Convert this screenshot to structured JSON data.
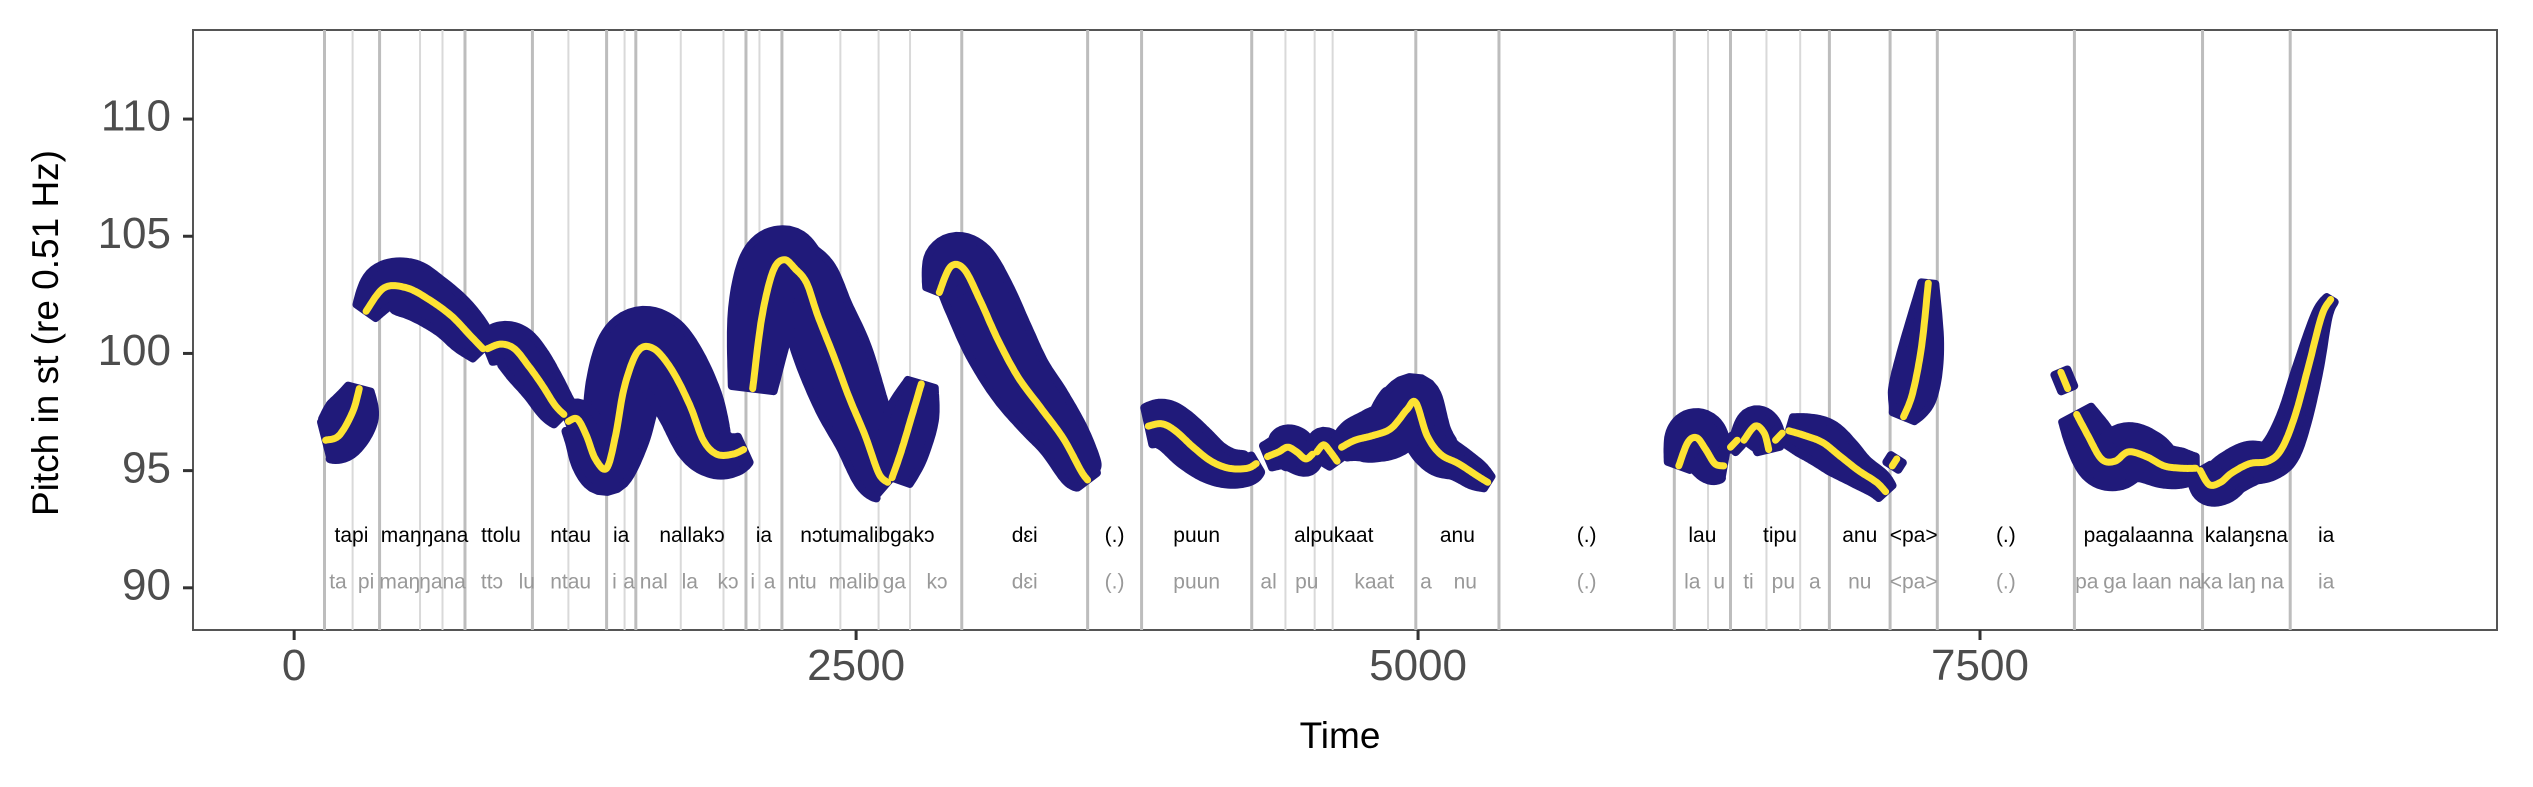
{
  "chart_data": {
    "type": "line",
    "xlabel": "Time",
    "ylabel": "Pitch in st (re 0.51 Hz)",
    "xlim": [
      -450,
      9800
    ],
    "ylim": [
      88.2,
      113.8
    ],
    "xticks": [
      0,
      2500,
      5000,
      7500
    ],
    "yticks": [
      90,
      95,
      100,
      105,
      110
    ],
    "colors": {
      "band": "#201a7a",
      "line": "#fde333",
      "boundary_major": "#bdbdbd",
      "boundary_minor": "#d9d9d9",
      "syllable_text": "#999999",
      "panel_border": "#555555"
    },
    "word_label_y": 92.2,
    "syllable_label_y": 90.2,
    "boundaries": {
      "major": [
        135,
        380,
        760,
        1060,
        1390,
        1520,
        2010,
        2170,
        2970,
        3530,
        3770,
        4260,
        4990,
        5360,
        6140,
        6390,
        6830,
        7100,
        7310,
        7920,
        8490,
        8880
      ],
      "minor": [
        260,
        560,
        660,
        1220,
        1470,
        1720,
        1910,
        2070,
        2430,
        2600,
        2740,
        4410,
        4540,
        4620,
        6290,
        6550,
        6700
      ]
    },
    "words": [
      {
        "label": "tapi",
        "x": 255
      },
      {
        "label": "maŋŋana",
        "x": 580
      },
      {
        "label": "ttolu",
        "x": 920
      },
      {
        "label": "ntau",
        "x": 1230
      },
      {
        "label": "ia",
        "x": 1455
      },
      {
        "label": "nallakɔ",
        "x": 1770
      },
      {
        "label": "ia",
        "x": 2090
      },
      {
        "label": "nɔtumalibgakɔ",
        "x": 2550
      },
      {
        "label": "dɛi",
        "x": 3250
      },
      {
        "label": "(.)",
        "x": 3650
      },
      {
        "label": "puun",
        "x": 4015
      },
      {
        "label": "alpukaat",
        "x": 4625
      },
      {
        "label": "anu",
        "x": 5175
      },
      {
        "label": "(.)",
        "x": 5750
      },
      {
        "label": "lau",
        "x": 6265
      },
      {
        "label": "tipu",
        "x": 6610
      },
      {
        "label": "anu",
        "x": 6965
      },
      {
        "label": "<pa>",
        "x": 7205
      },
      {
        "label": "(.)",
        "x": 7615
      },
      {
        "label": "pagalaanna",
        "x": 8205
      },
      {
        "label": "kalaŋɛna",
        "x": 8685
      },
      {
        "label": "ia",
        "x": 9040
      }
    ],
    "syllables": [
      {
        "label": "ta",
        "x": 195
      },
      {
        "label": "pi",
        "x": 320
      },
      {
        "label": "maŋ",
        "x": 470
      },
      {
        "label": "ŋana",
        "x": 660
      },
      {
        "label": "ttɔ",
        "x": 880
      },
      {
        "label": "lu",
        "x": 1035
      },
      {
        "label": "ntau",
        "x": 1230
      },
      {
        "label": "i",
        "x": 1425
      },
      {
        "label": "a",
        "x": 1490
      },
      {
        "label": "nal",
        "x": 1600
      },
      {
        "label": "la",
        "x": 1760
      },
      {
        "label": "kɔ",
        "x": 1930
      },
      {
        "label": "i",
        "x": 2040
      },
      {
        "label": "a",
        "x": 2115
      },
      {
        "label": "ntu",
        "x": 2260
      },
      {
        "label": "malib",
        "x": 2490
      },
      {
        "label": "ga",
        "x": 2670
      },
      {
        "label": "kɔ",
        "x": 2860
      },
      {
        "label": "dɛi",
        "x": 3250
      },
      {
        "label": "(.)",
        "x": 3650
      },
      {
        "label": "puun",
        "x": 4015
      },
      {
        "label": "al",
        "x": 4335
      },
      {
        "label": "pu",
        "x": 4505
      },
      {
        "label": "kaat",
        "x": 4805
      },
      {
        "label": "a",
        "x": 5035
      },
      {
        "label": "nu",
        "x": 5210
      },
      {
        "label": "(.)",
        "x": 5750
      },
      {
        "label": "la",
        "x": 6220
      },
      {
        "label": "u",
        "x": 6340
      },
      {
        "label": "ti",
        "x": 6470
      },
      {
        "label": "pu",
        "x": 6625
      },
      {
        "label": "a",
        "x": 6765
      },
      {
        "label": "nu",
        "x": 6965
      },
      {
        "label": "<pa>",
        "x": 7205
      },
      {
        "label": "(.)",
        "x": 7615
      },
      {
        "label": "pa",
        "x": 7975
      },
      {
        "label": "ga",
        "x": 8100
      },
      {
        "label": "laan",
        "x": 8265
      },
      {
        "label": "na",
        "x": 8435
      },
      {
        "label": "ka",
        "x": 8530
      },
      {
        "label": "laŋ",
        "x": 8665
      },
      {
        "label": "na",
        "x": 8800
      },
      {
        "label": "ia",
        "x": 9040
      }
    ],
    "series": [
      {
        "points": [
          [
            140,
            96.3
          ],
          [
            200,
            96.5
          ],
          [
            260,
            97.5
          ],
          [
            290,
            98.5
          ]
        ],
        "widths": [
          0.8,
          1.0,
          1.0,
          0.5
        ]
      },
      {
        "points": [
          [
            320,
            101.8
          ],
          [
            400,
            102.8
          ],
          [
            500,
            102.8
          ],
          [
            600,
            102.3
          ],
          [
            700,
            101.6
          ],
          [
            780,
            100.8
          ],
          [
            840,
            100.2
          ]
        ],
        "widths": [
          0.5,
          0.9,
          1.1,
          1.0,
          0.9,
          0.8,
          0.6
        ]
      },
      {
        "points": [
          [
            860,
            100.2
          ],
          [
            920,
            100.4
          ],
          [
            980,
            100.2
          ],
          [
            1040,
            99.5
          ],
          [
            1100,
            98.7
          ],
          [
            1160,
            97.8
          ],
          [
            1200,
            97.4
          ]
        ],
        "widths": [
          0.6,
          0.8,
          0.9,
          0.9,
          0.8,
          0.7,
          0.6
        ]
      },
      {
        "points": [
          [
            1220,
            97.1
          ],
          [
            1260,
            97.2
          ],
          [
            1300,
            96.5
          ],
          [
            1340,
            95.5
          ],
          [
            1390,
            95.1
          ],
          [
            1430,
            96.5
          ],
          [
            1470,
            98.6
          ],
          [
            1530,
            100.1
          ],
          [
            1600,
            100.2
          ],
          [
            1680,
            99.3
          ],
          [
            1760,
            97.8
          ],
          [
            1820,
            96.3
          ],
          [
            1880,
            95.7
          ],
          [
            1950,
            95.7
          ],
          [
            2000,
            95.9
          ]
        ],
        "widths": [
          0.6,
          0.7,
          0.8,
          0.9,
          1.0,
          1.3,
          1.5,
          1.6,
          1.5,
          1.4,
          1.3,
          1.1,
          0.9,
          0.8,
          0.6
        ]
      },
      {
        "points": [
          [
            2040,
            98.5
          ],
          [
            2080,
            101.5
          ],
          [
            2130,
            103.5
          ],
          [
            2180,
            104.0
          ],
          [
            2230,
            103.6
          ],
          [
            2280,
            103.0
          ],
          [
            2330,
            101.6
          ],
          [
            2400,
            99.9
          ],
          [
            2470,
            98.1
          ],
          [
            2540,
            96.5
          ],
          [
            2600,
            94.9
          ],
          [
            2640,
            94.5
          ]
        ],
        "widths": [
          0.9,
          1.3,
          1.4,
          1.3,
          1.2,
          1.3,
          1.4,
          1.5,
          1.4,
          1.2,
          1.0,
          0.8
        ]
      },
      {
        "points": [
          [
            2660,
            94.7
          ],
          [
            2700,
            95.8
          ],
          [
            2750,
            97.4
          ],
          [
            2790,
            98.7
          ]
        ],
        "widths": [
          0.8,
          1.0,
          1.0,
          0.6
        ]
      },
      {
        "points": [
          [
            2870,
            102.6
          ],
          [
            2920,
            103.7
          ],
          [
            2980,
            103.6
          ],
          [
            3050,
            102.3
          ],
          [
            3130,
            100.6
          ],
          [
            3220,
            99.0
          ],
          [
            3320,
            97.7
          ],
          [
            3420,
            96.4
          ],
          [
            3500,
            95.0
          ],
          [
            3530,
            94.6
          ]
        ],
        "widths": [
          0.6,
          1.1,
          1.3,
          1.4,
          1.4,
          1.3,
          1.2,
          1.0,
          0.8,
          0.5
        ]
      },
      {
        "points": [
          [
            3800,
            96.9
          ],
          [
            3860,
            97.0
          ],
          [
            3920,
            96.7
          ],
          [
            4000,
            96.0
          ],
          [
            4080,
            95.4
          ],
          [
            4160,
            95.1
          ],
          [
            4240,
            95.1
          ],
          [
            4280,
            95.3
          ]
        ],
        "widths": [
          0.8,
          0.9,
          0.9,
          0.9,
          0.8,
          0.7,
          0.6,
          0.4
        ]
      },
      {
        "points": [
          [
            4330,
            95.6
          ],
          [
            4380,
            95.8
          ],
          [
            4420,
            96.0
          ],
          [
            4460,
            95.8
          ],
          [
            4500,
            95.5
          ],
          [
            4530,
            95.7
          ]
        ],
        "widths": [
          0.5,
          0.6,
          0.8,
          0.8,
          0.6,
          0.4
        ]
      },
      {
        "points": [
          [
            4550,
            95.8
          ],
          [
            4580,
            96.1
          ],
          [
            4610,
            95.8
          ],
          [
            4640,
            95.4
          ]
        ],
        "widths": [
          0.4,
          0.6,
          0.6,
          0.4
        ]
      },
      {
        "points": [
          [
            4660,
            96.0
          ],
          [
            4720,
            96.3
          ],
          [
            4800,
            96.5
          ],
          [
            4880,
            96.8
          ],
          [
            4950,
            97.6
          ],
          [
            4990,
            97.9
          ],
          [
            5040,
            96.5
          ],
          [
            5100,
            95.7
          ],
          [
            5180,
            95.3
          ],
          [
            5260,
            94.8
          ],
          [
            5310,
            94.5
          ]
        ],
        "widths": [
          0.5,
          0.8,
          1.0,
          1.1,
          1.2,
          1.0,
          0.9,
          0.8,
          0.6,
          0.5,
          0.3
        ]
      },
      {
        "points": [
          [
            6160,
            95.2
          ],
          [
            6200,
            96.2
          ],
          [
            6240,
            96.4
          ],
          [
            6280,
            95.9
          ],
          [
            6320,
            95.3
          ],
          [
            6360,
            95.2
          ]
        ],
        "widths": [
          0.5,
          0.9,
          1.1,
          1.0,
          0.8,
          0.5
        ]
      },
      {
        "points": [
          [
            6390,
            96.0
          ],
          [
            6420,
            96.3
          ]
        ],
        "widths": [
          0.3,
          0.3
        ]
      },
      {
        "points": [
          [
            6450,
            96.3
          ],
          [
            6500,
            96.9
          ],
          [
            6540,
            96.6
          ],
          [
            6560,
            95.9
          ]
        ],
        "widths": [
          0.5,
          0.7,
          0.7,
          0.5
        ]
      },
      {
        "points": [
          [
            6590,
            96.3
          ],
          [
            6620,
            96.6
          ]
        ],
        "widths": [
          0.3,
          0.3
        ]
      },
      {
        "points": [
          [
            6650,
            96.7
          ],
          [
            6720,
            96.5
          ],
          [
            6800,
            96.2
          ],
          [
            6880,
            95.6
          ],
          [
            6960,
            95.0
          ],
          [
            7040,
            94.5
          ],
          [
            7080,
            94.1
          ]
        ],
        "widths": [
          0.6,
          0.8,
          0.9,
          0.8,
          0.6,
          0.5,
          0.4
        ]
      },
      {
        "points": [
          [
            7110,
            95.2
          ],
          [
            7130,
            95.5
          ]
        ],
        "widths": [
          0.3,
          0.3
        ]
      },
      {
        "points": [
          [
            7160,
            97.3
          ],
          [
            7200,
            98.3
          ],
          [
            7240,
            100.3
          ],
          [
            7270,
            103.0
          ]
        ],
        "widths": [
          0.5,
          0.9,
          0.8,
          0.3
        ]
      },
      {
        "points": [
          [
            7860,
            99.2
          ],
          [
            7890,
            98.5
          ]
        ],
        "widths": [
          0.3,
          0.3
        ]
      },
      {
        "points": [
          [
            7930,
            97.4
          ],
          [
            7980,
            96.5
          ],
          [
            8040,
            95.5
          ],
          [
            8100,
            95.4
          ],
          [
            8160,
            95.8
          ],
          [
            8240,
            95.6
          ],
          [
            8320,
            95.2
          ],
          [
            8400,
            95.1
          ],
          [
            8460,
            95.1
          ]
        ],
        "widths": [
          0.7,
          0.9,
          1.0,
          1.1,
          1.1,
          1.0,
          0.8,
          0.7,
          0.5
        ]
      },
      {
        "points": [
          [
            8480,
            95.0
          ],
          [
            8520,
            94.4
          ],
          [
            8570,
            94.5
          ],
          [
            8620,
            94.9
          ],
          [
            8700,
            95.3
          ],
          [
            8780,
            95.4
          ],
          [
            8840,
            95.9
          ],
          [
            8900,
            97.3
          ],
          [
            8960,
            99.4
          ],
          [
            9020,
            101.6
          ],
          [
            9060,
            102.3
          ]
        ],
        "widths": [
          0.5,
          0.7,
          0.8,
          0.8,
          0.8,
          0.7,
          0.7,
          0.6,
          0.5,
          0.3,
          0.2
        ]
      }
    ]
  }
}
